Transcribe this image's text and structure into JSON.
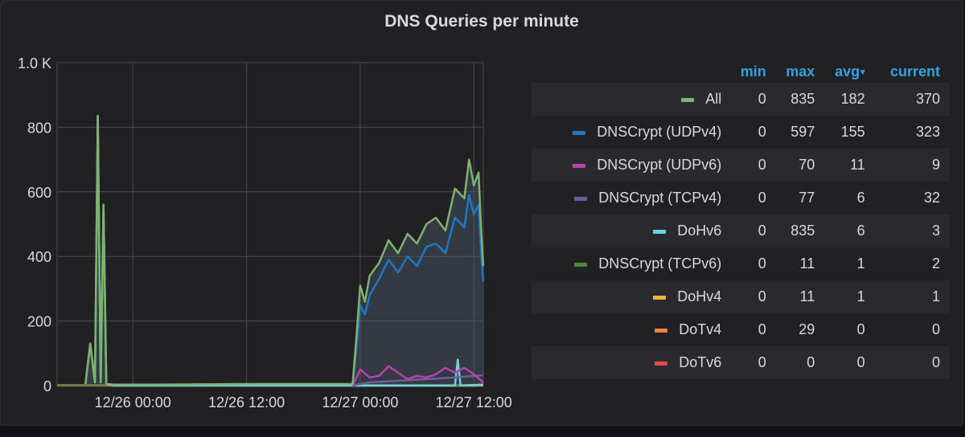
{
  "panel": {
    "title": "DNS Queries per minute"
  },
  "legend": {
    "headers": {
      "min": "min",
      "max": "max",
      "avg": "avg",
      "current": "current",
      "sort_indicator": "▾"
    },
    "rows": [
      {
        "name": "All",
        "color": "#7eb26d",
        "min": "0",
        "max": "835",
        "avg": "182",
        "current": "370"
      },
      {
        "name": "DNSCrypt (UDPv4)",
        "color": "#1f78c1",
        "min": "0",
        "max": "597",
        "avg": "155",
        "current": "323"
      },
      {
        "name": "DNSCrypt (UDPv6)",
        "color": "#ba43a9",
        "min": "0",
        "max": "70",
        "avg": "11",
        "current": "9"
      },
      {
        "name": "DNSCrypt (TCPv4)",
        "color": "#705da0",
        "min": "0",
        "max": "77",
        "avg": "6",
        "current": "32"
      },
      {
        "name": "DoHv6",
        "color": "#6ed0e0",
        "min": "0",
        "max": "835",
        "avg": "6",
        "current": "3"
      },
      {
        "name": "DNSCrypt (TCPv6)",
        "color": "#508642",
        "min": "0",
        "max": "11",
        "avg": "1",
        "current": "2"
      },
      {
        "name": "DoHv4",
        "color": "#eab839",
        "min": "0",
        "max": "11",
        "avg": "1",
        "current": "1"
      },
      {
        "name": "DoTv4",
        "color": "#ef843c",
        "min": "0",
        "max": "29",
        "avg": "0",
        "current": "0"
      },
      {
        "name": "DoTv6",
        "color": "#e24d42",
        "min": "0",
        "max": "0",
        "avg": "0",
        "current": "0"
      }
    ]
  },
  "chart_data": {
    "type": "area",
    "title": "DNS Queries per minute",
    "x_unit": "hours since 12/25 16:00",
    "xlim": [
      0,
      45
    ],
    "ylim": [
      0,
      1000
    ],
    "x_ticks": [
      {
        "value": 8,
        "label": "12/26 00:00"
      },
      {
        "value": 20,
        "label": "12/26 12:00"
      },
      {
        "value": 32,
        "label": "12/27 00:00"
      },
      {
        "value": 44,
        "label": "12/27 12:00"
      }
    ],
    "y_ticks": [
      {
        "value": 0,
        "label": "0"
      },
      {
        "value": 200,
        "label": "200"
      },
      {
        "value": 400,
        "label": "400"
      },
      {
        "value": 600,
        "label": "600"
      },
      {
        "value": 800,
        "label": "800"
      },
      {
        "value": 1000,
        "label": "1.0 K"
      }
    ],
    "grid": true,
    "legend_position": "right",
    "series": [
      {
        "name": "All",
        "color": "#7eb26d",
        "x": [
          3,
          3.5,
          4,
          4.3,
          4.6,
          4.9,
          5.2,
          6,
          10,
          20,
          30,
          31.2,
          31.6,
          32,
          32.5,
          33,
          34,
          35,
          36,
          37,
          38,
          39,
          40,
          41,
          42,
          43,
          43.5,
          44,
          44.5,
          44.8,
          45
        ],
        "y": [
          5,
          130,
          10,
          835,
          10,
          560,
          5,
          3,
          3,
          5,
          5,
          5,
          150,
          310,
          260,
          340,
          380,
          450,
          410,
          470,
          440,
          500,
          520,
          480,
          610,
          580,
          700,
          620,
          660,
          470,
          370
        ]
      },
      {
        "name": "DNSCrypt (UDPv4)",
        "color": "#1f78c1",
        "x": [
          31.2,
          31.6,
          32,
          32.5,
          33,
          34,
          35,
          36,
          37,
          38,
          39,
          40,
          41,
          42,
          43,
          43.5,
          44,
          44.5,
          44.8,
          45
        ],
        "y": [
          0,
          110,
          250,
          220,
          280,
          330,
          390,
          350,
          400,
          370,
          430,
          440,
          410,
          520,
          490,
          590,
          530,
          560,
          400,
          323
        ]
      },
      {
        "name": "DNSCrypt (UDPv6)",
        "color": "#ba43a9",
        "x": [
          31.2,
          32,
          33,
          34,
          35,
          36,
          37,
          38,
          39,
          40,
          41,
          42,
          43,
          44,
          45
        ],
        "y": [
          0,
          50,
          25,
          30,
          60,
          40,
          20,
          30,
          25,
          35,
          55,
          40,
          55,
          35,
          9
        ]
      },
      {
        "name": "DNSCrypt (TCPv4)",
        "color": "#705da0",
        "x": [
          31.2,
          33,
          36,
          39,
          42,
          44,
          45
        ],
        "y": [
          0,
          10,
          15,
          20,
          25,
          30,
          32
        ]
      },
      {
        "name": "DoHv6",
        "color": "#6ed0e0",
        "x": [
          3,
          3.5,
          4,
          4.3,
          4.6,
          4.9,
          5.2,
          6,
          38,
          42,
          42.3,
          42.6,
          45
        ],
        "y": [
          5,
          130,
          10,
          835,
          10,
          560,
          5,
          0,
          0,
          0,
          80,
          0,
          3
        ]
      },
      {
        "name": "DNSCrypt (TCPv6)",
        "color": "#508642",
        "x": [
          0,
          45
        ],
        "y": [
          2,
          2
        ]
      },
      {
        "name": "DoHv4",
        "color": "#eab839",
        "x": [
          31.2,
          45
        ],
        "y": [
          1,
          1
        ]
      },
      {
        "name": "DoTv4",
        "color": "#ef843c",
        "x": [
          31.2,
          45
        ],
        "y": [
          0,
          0
        ]
      },
      {
        "name": "DoTv6",
        "color": "#e24d42",
        "x": [
          0,
          45
        ],
        "y": [
          0,
          0
        ]
      }
    ]
  }
}
